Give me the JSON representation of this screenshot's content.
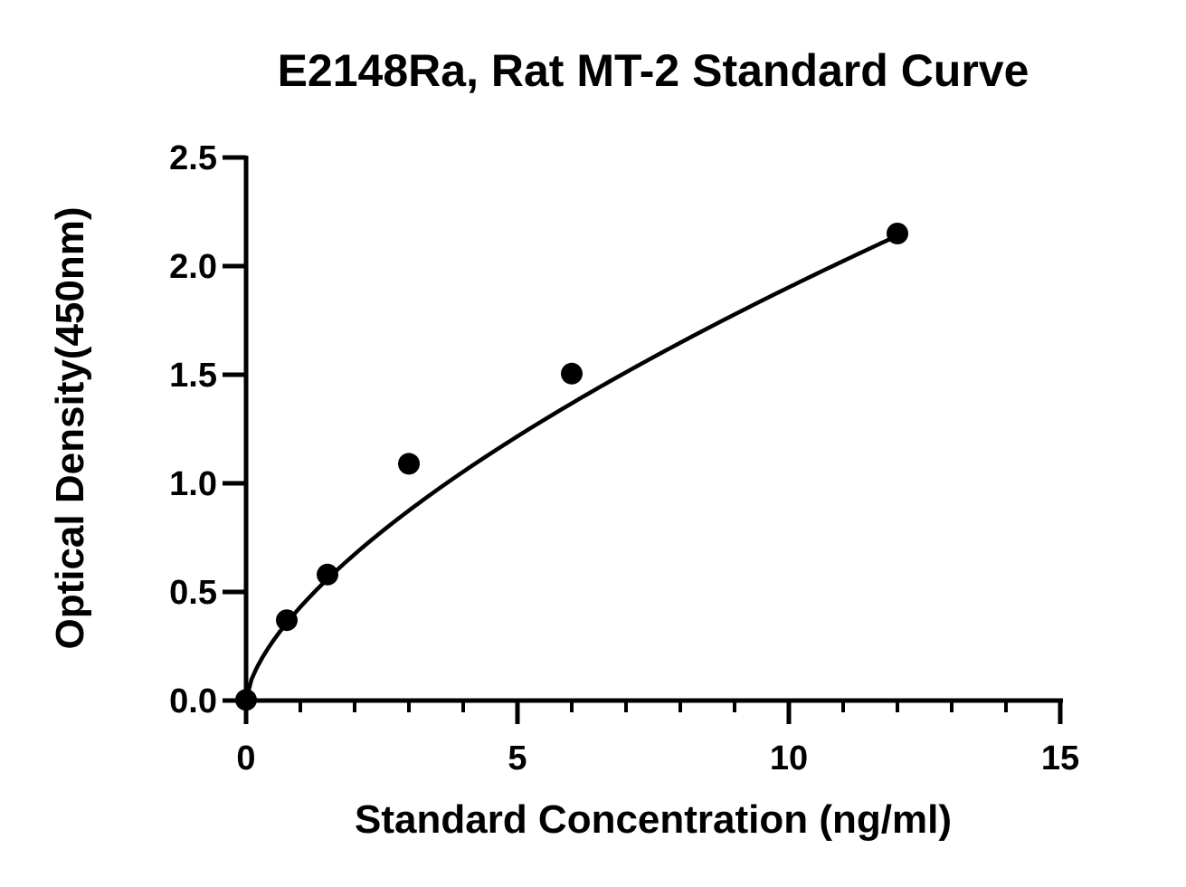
{
  "chart_data": {
    "type": "scatter",
    "title": "E2148Ra, Rat MT-2 Standard Curve",
    "xlabel": "Standard Concentration (ng/ml)",
    "ylabel": "Optical Density(450nm)",
    "xlim": [
      0,
      15
    ],
    "ylim": [
      0,
      2.5
    ],
    "x_ticks": [
      "0",
      "5",
      "10",
      "15"
    ],
    "y_ticks": [
      "0.0",
      "0.5",
      "1.0",
      "1.5",
      "2.0",
      "2.5"
    ],
    "x_minor_tick_step": 1,
    "grid": false,
    "legend": "none",
    "series": [
      {
        "x": [
          0,
          0.75,
          1.5,
          3,
          6,
          12
        ],
        "y": [
          0.003,
          0.37,
          0.58,
          1.09,
          1.505,
          2.15
        ]
      }
    ],
    "fit_curve": {
      "type": "smooth fit line",
      "x_range": [
        0,
        12
      ],
      "y_start": 0,
      "y_end": 2.14
    },
    "colors": {
      "marker": "#000000",
      "line": "#000000",
      "background": "#ffffff"
    }
  }
}
